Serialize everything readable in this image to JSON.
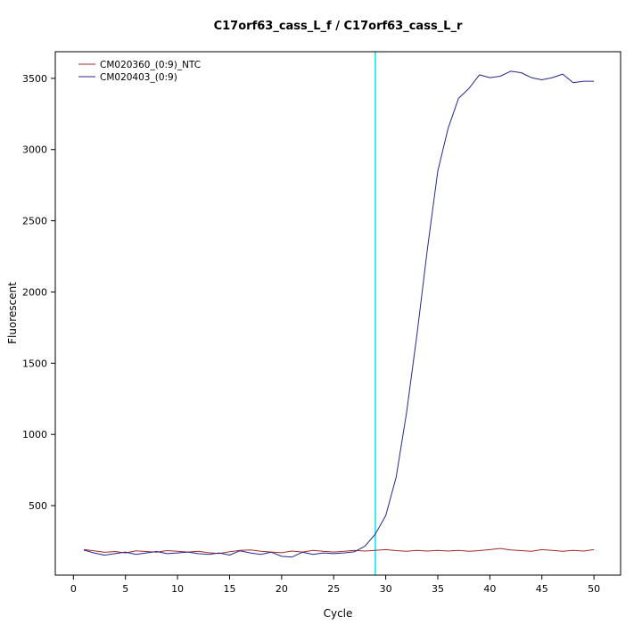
{
  "chart_data": {
    "type": "line",
    "title": "C17orf63_cass_L_f / C17orf63_cass_L_r",
    "xlabel": "Cycle",
    "ylabel": "Fluorescent",
    "xlim": [
      -1.74,
      52.56
    ],
    "ylim": [
      12,
      3687
    ],
    "x_ticks": [
      0,
      5,
      10,
      15,
      20,
      25,
      30,
      35,
      40,
      45,
      50
    ],
    "y_ticks": [
      500,
      1000,
      1500,
      2000,
      2500,
      3000,
      3500
    ],
    "grid": false,
    "legend_position": "top-left",
    "threshold_line": {
      "cycle": 29,
      "color": "#00e8e8"
    },
    "x": [
      1,
      2,
      3,
      4,
      5,
      6,
      7,
      8,
      9,
      10,
      11,
      12,
      13,
      14,
      15,
      16,
      17,
      18,
      19,
      20,
      21,
      22,
      23,
      24,
      25,
      26,
      27,
      28,
      29,
      30,
      31,
      32,
      33,
      34,
      35,
      36,
      37,
      38,
      39,
      40,
      41,
      42,
      43,
      44,
      45,
      46,
      47,
      48,
      49,
      50
    ],
    "series": [
      {
        "name": "CM020360_(0:9)_NTC",
        "color": "#a52a2a",
        "values": [
          192,
          183,
          172,
          178,
          168,
          183,
          178,
          173,
          184,
          179,
          174,
          179,
          169,
          164,
          176,
          186,
          189,
          179,
          174,
          169,
          181,
          174,
          186,
          179,
          174,
          179,
          186,
          181,
          186,
          191,
          184,
          179,
          186,
          181,
          186,
          181,
          186,
          179,
          184,
          191,
          199,
          189,
          184,
          179,
          191,
          186,
          179,
          186,
          181,
          191
        ]
      },
      {
        "name": "CM020403_(0:9)",
        "color": "#27278f",
        "values": [
          188,
          168,
          152,
          163,
          174,
          158,
          168,
          178,
          163,
          168,
          174,
          163,
          158,
          168,
          153,
          183,
          168,
          158,
          173,
          144,
          139,
          173,
          158,
          168,
          163,
          168,
          176,
          215,
          300,
          430,
          700,
          1150,
          1700,
          2300,
          2850,
          3150,
          3360,
          3430,
          3525,
          3505,
          3515,
          3550,
          3540,
          3505,
          3490,
          3505,
          3530,
          3470,
          3480,
          3480
        ]
      }
    ]
  }
}
